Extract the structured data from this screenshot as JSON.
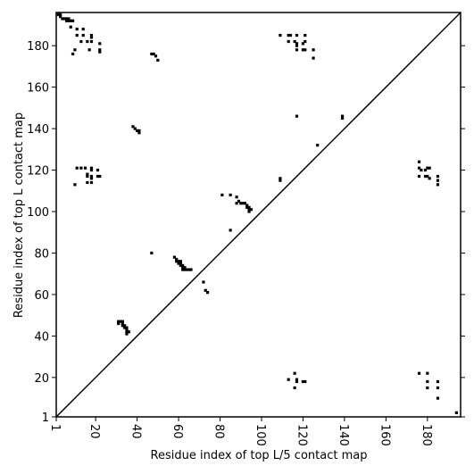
{
  "chart_data": {
    "type": "scatter",
    "xlabel": "Residue index of top L/5 contact map",
    "ylabel": "Residue index of top L contact map",
    "color": "#000000",
    "xlim": [
      1,
      196
    ],
    "ylim": [
      1,
      196
    ],
    "xticks": [
      1,
      20,
      40,
      60,
      80,
      100,
      120,
      140,
      160,
      180
    ],
    "yticks": [
      1,
      20,
      40,
      60,
      80,
      100,
      120,
      140,
      160,
      180
    ],
    "x": [
      2,
      3,
      3,
      4,
      5,
      6,
      7,
      6,
      7,
      8,
      9,
      8,
      11,
      14,
      11,
      14,
      18,
      18,
      13,
      16,
      18,
      22,
      10,
      17,
      22,
      22,
      9,
      47,
      48,
      49,
      50,
      38,
      39,
      40,
      41,
      41,
      11,
      13,
      15,
      18,
      18,
      21,
      16,
      16,
      18,
      18,
      21,
      22,
      16,
      18,
      10,
      47,
      58,
      59,
      59,
      60,
      61,
      60,
      61,
      61,
      62,
      62,
      63,
      63,
      64,
      65,
      66,
      62,
      72,
      73,
      74,
      31,
      32,
      33,
      31,
      33,
      33,
      34,
      34,
      35,
      35,
      35,
      36,
      35,
      81,
      85,
      88,
      89,
      88,
      90,
      91,
      92,
      93,
      93,
      94,
      94,
      95,
      94,
      85,
      109,
      109,
      109,
      113,
      114,
      117,
      121,
      113,
      116,
      117,
      117,
      120,
      121,
      117,
      120,
      121,
      125,
      125,
      117,
      139,
      139,
      127,
      113,
      117,
      117,
      120,
      121,
      116,
      116,
      176,
      180,
      180,
      185,
      180,
      185,
      185,
      194,
      176,
      176,
      177,
      180,
      181,
      179,
      176,
      179,
      180,
      181,
      185,
      185,
      185
    ],
    "values": [
      195,
      195,
      194,
      193,
      193,
      193,
      193,
      192,
      192,
      192,
      192,
      189,
      188,
      188,
      185,
      185,
      185,
      184,
      182,
      182,
      182,
      181,
      178,
      178,
      178,
      177,
      176,
      176,
      176,
      175,
      173,
      141,
      140,
      139,
      139,
      138,
      121,
      121,
      121,
      121,
      120,
      120,
      118,
      117,
      117,
      116,
      117,
      117,
      114,
      114,
      113,
      80,
      78,
      77,
      76,
      76,
      76,
      75,
      75,
      74,
      74,
      73,
      73,
      72,
      72,
      72,
      72,
      72,
      66,
      62,
      61,
      47,
      47,
      47,
      46,
      46,
      45,
      45,
      44,
      44,
      43,
      42,
      42,
      41,
      108,
      108,
      107,
      105,
      104,
      104,
      104,
      104,
      103,
      102,
      102,
      101,
      101,
      100,
      91,
      116,
      115,
      185,
      185,
      185,
      185,
      185,
      182,
      182,
      181,
      180,
      181,
      182,
      178,
      178,
      178,
      178,
      174,
      146,
      146,
      145,
      132,
      19,
      19,
      18,
      18,
      18,
      15,
      22,
      22,
      22,
      18,
      18,
      15,
      15,
      10,
      3,
      124,
      121,
      120,
      121,
      121,
      120,
      117,
      117,
      117,
      116,
      117,
      115,
      113
    ]
  }
}
